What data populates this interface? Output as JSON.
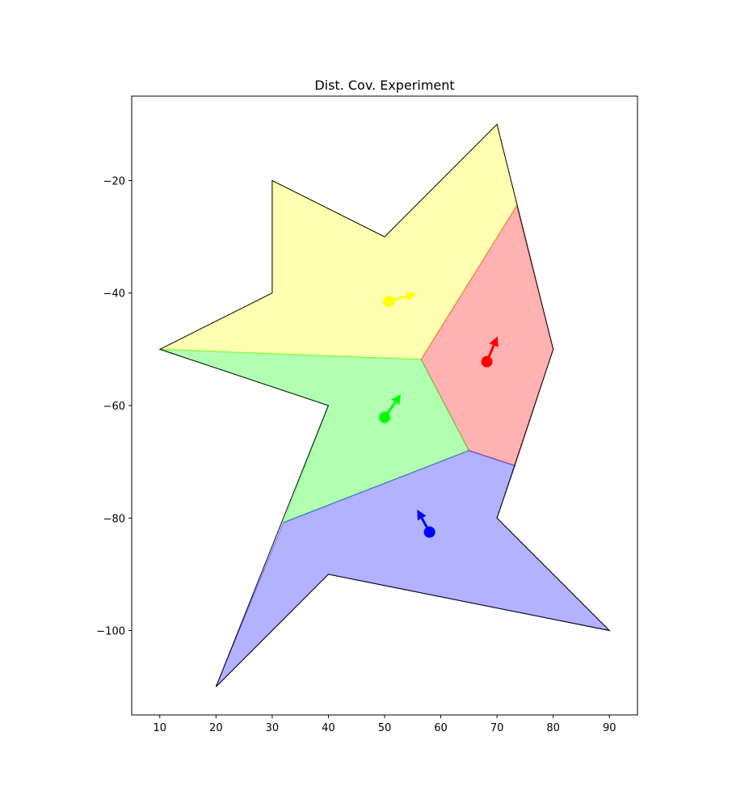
{
  "chart_data": {
    "type": "scatter",
    "title": "Dist. Cov. Experiment",
    "xlabel": "",
    "ylabel": "",
    "xlim": [
      5,
      95
    ],
    "ylim": [
      -115,
      -5
    ],
    "x_ticks": [
      10,
      20,
      30,
      40,
      50,
      60,
      70,
      80,
      90
    ],
    "y_ticks": [
      -20,
      -40,
      -60,
      -80,
      -100
    ],
    "grid": false,
    "outline": [
      [
        10,
        -50
      ],
      [
        30,
        -40
      ],
      [
        30,
        -20
      ],
      [
        50,
        -30
      ],
      [
        70,
        -10
      ],
      [
        80,
        -50
      ],
      [
        70,
        -80
      ],
      [
        90,
        -100
      ],
      [
        40,
        -90
      ],
      [
        20,
        -110
      ],
      [
        40,
        -60
      ]
    ],
    "regions": [
      {
        "color": "#ffff00",
        "polygon": [
          [
            10,
            -50
          ],
          [
            30,
            -40
          ],
          [
            30,
            -20
          ],
          [
            50,
            -30
          ],
          [
            70,
            -10
          ],
          [
            73.5,
            -24.5
          ],
          [
            56.5,
            -51.8
          ]
        ]
      },
      {
        "color": "#ff0000",
        "polygon": [
          [
            73.5,
            -24.5
          ],
          [
            80,
            -50
          ],
          [
            73.2,
            -70.7
          ],
          [
            65,
            -68
          ],
          [
            56.5,
            -51.8
          ]
        ]
      },
      {
        "color": "#00ff00",
        "polygon": [
          [
            10,
            -50
          ],
          [
            56.5,
            -51.8
          ],
          [
            65,
            -68
          ],
          [
            32,
            -80.8
          ],
          [
            40,
            -60
          ]
        ]
      },
      {
        "color": "#0000ff",
        "polygon": [
          [
            32,
            -80.8
          ],
          [
            65,
            -68
          ],
          [
            73.2,
            -70.7
          ],
          [
            70,
            -80
          ],
          [
            90,
            -100
          ],
          [
            40,
            -90
          ],
          [
            20,
            -110
          ]
        ]
      }
    ],
    "agents": [
      {
        "color": "#ffff00",
        "x": 50.7,
        "y": -41.5,
        "dx": 5.0,
        "dy": 1.4
      },
      {
        "color": "#ff0000",
        "x": 68.2,
        "y": -52.2,
        "dx": 1.9,
        "dy": 4.5
      },
      {
        "color": "#00ff00",
        "x": 50.0,
        "y": -62.1,
        "dx": 2.9,
        "dy": 4.1
      },
      {
        "color": "#0000ff",
        "x": 58.0,
        "y": -82.5,
        "dx": -2.2,
        "dy": 4.0
      }
    ]
  }
}
